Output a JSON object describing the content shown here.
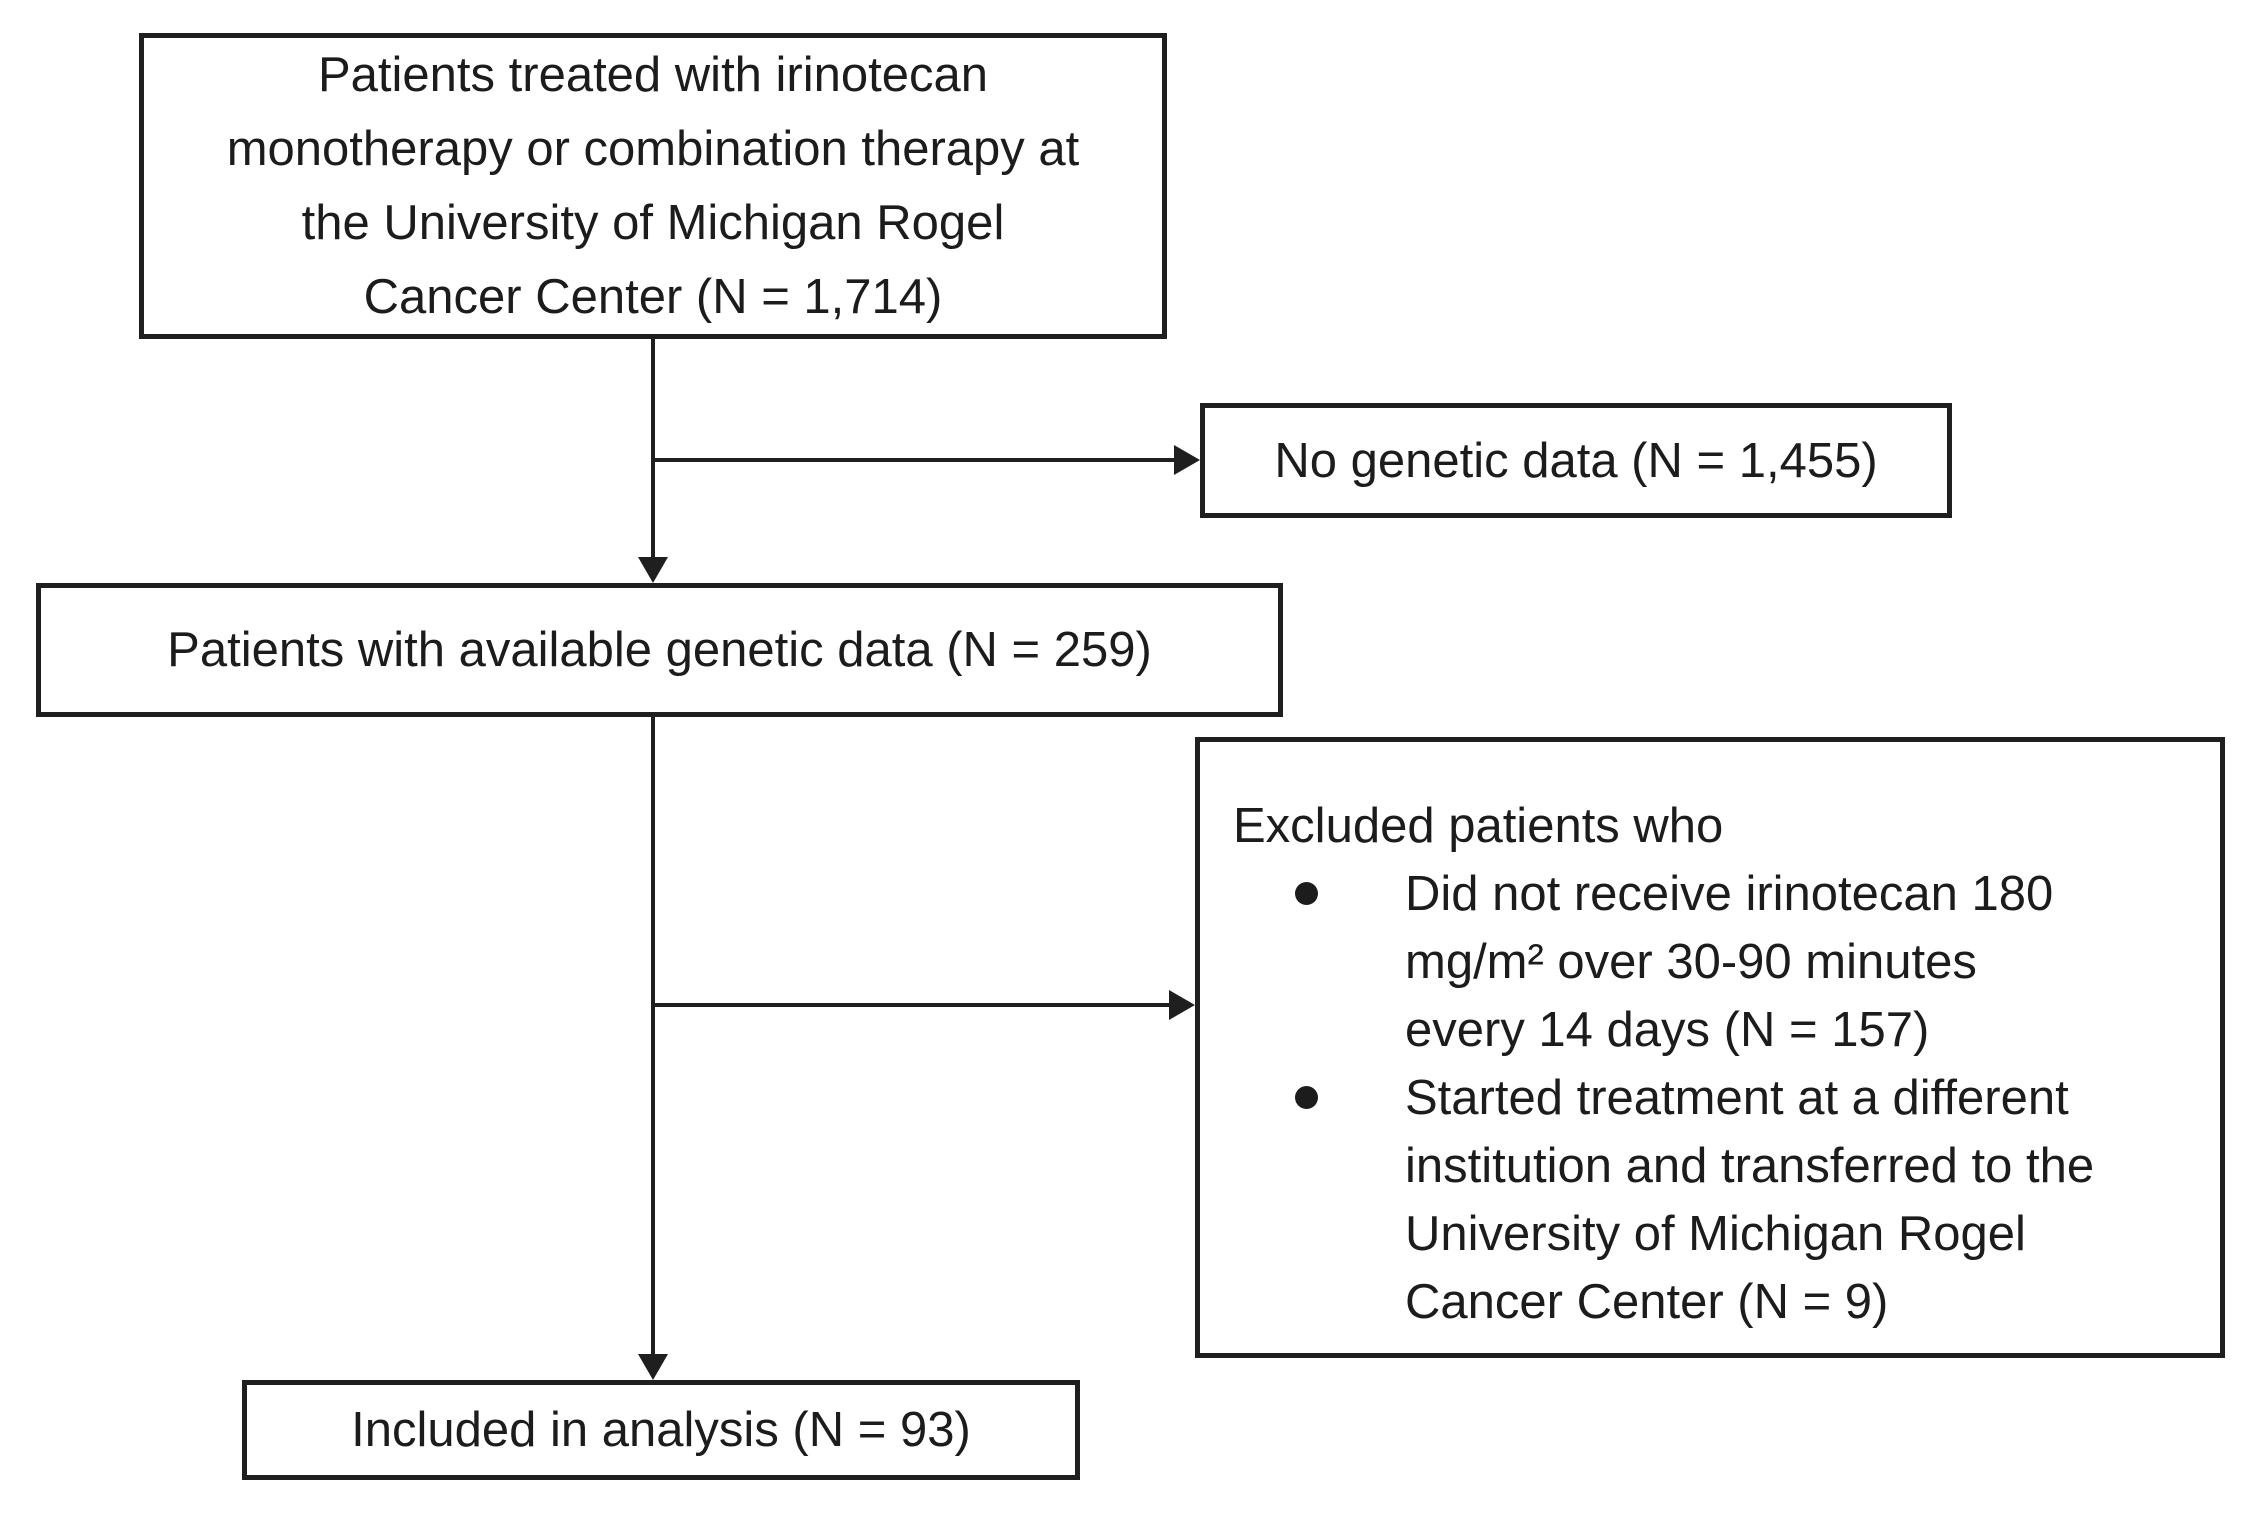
{
  "flowchart": {
    "nodes": {
      "top": {
        "lines": [
          "Patients treated with irinotecan",
          "monotherapy or combination therapy at",
          "the University of Michigan Rogel",
          "Cancer Center (N = 1,714)"
        ]
      },
      "no_genetic": {
        "text": "No genetic data (N = 1,455)"
      },
      "available": {
        "text": "Patients with available genetic data (N = 259)"
      },
      "excluded": {
        "heading": "Excluded patients who",
        "bullets": [
          {
            "lines": [
              "Did not receive irinotecan 180",
              "mg/m² over 30-90 minutes",
              "every 14 days (N = 157)"
            ]
          },
          {
            "lines": [
              "Started treatment at a different",
              "institution and transferred to the",
              "University of Michigan Rogel",
              "Cancer Center (N = 9)"
            ]
          }
        ]
      },
      "included": {
        "text": "Included in analysis (N = 93)"
      }
    },
    "colors": {
      "line": "#1f1f1f",
      "text": "#1c1c1c",
      "background": "#ffffff"
    }
  }
}
